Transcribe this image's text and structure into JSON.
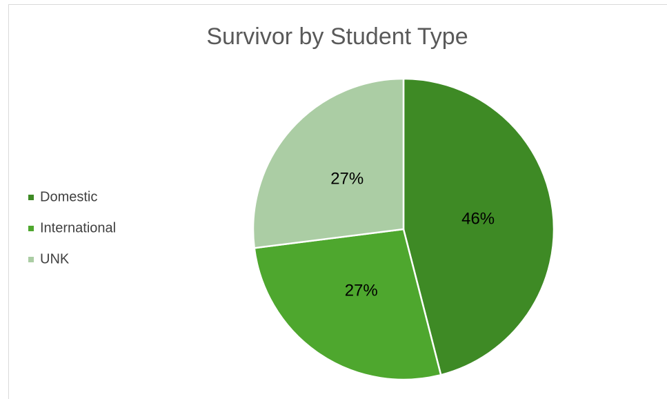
{
  "chart_data": {
    "type": "pie",
    "title": "Survivor by Student Type",
    "categories": [
      "Domestic",
      "International",
      "UNK"
    ],
    "values": [
      46,
      27,
      27
    ],
    "value_labels": [
      "46%",
      "27%",
      "27%"
    ],
    "colors": [
      "#3e8a25",
      "#4ea72e",
      "#abcda4"
    ],
    "legend": "left"
  }
}
